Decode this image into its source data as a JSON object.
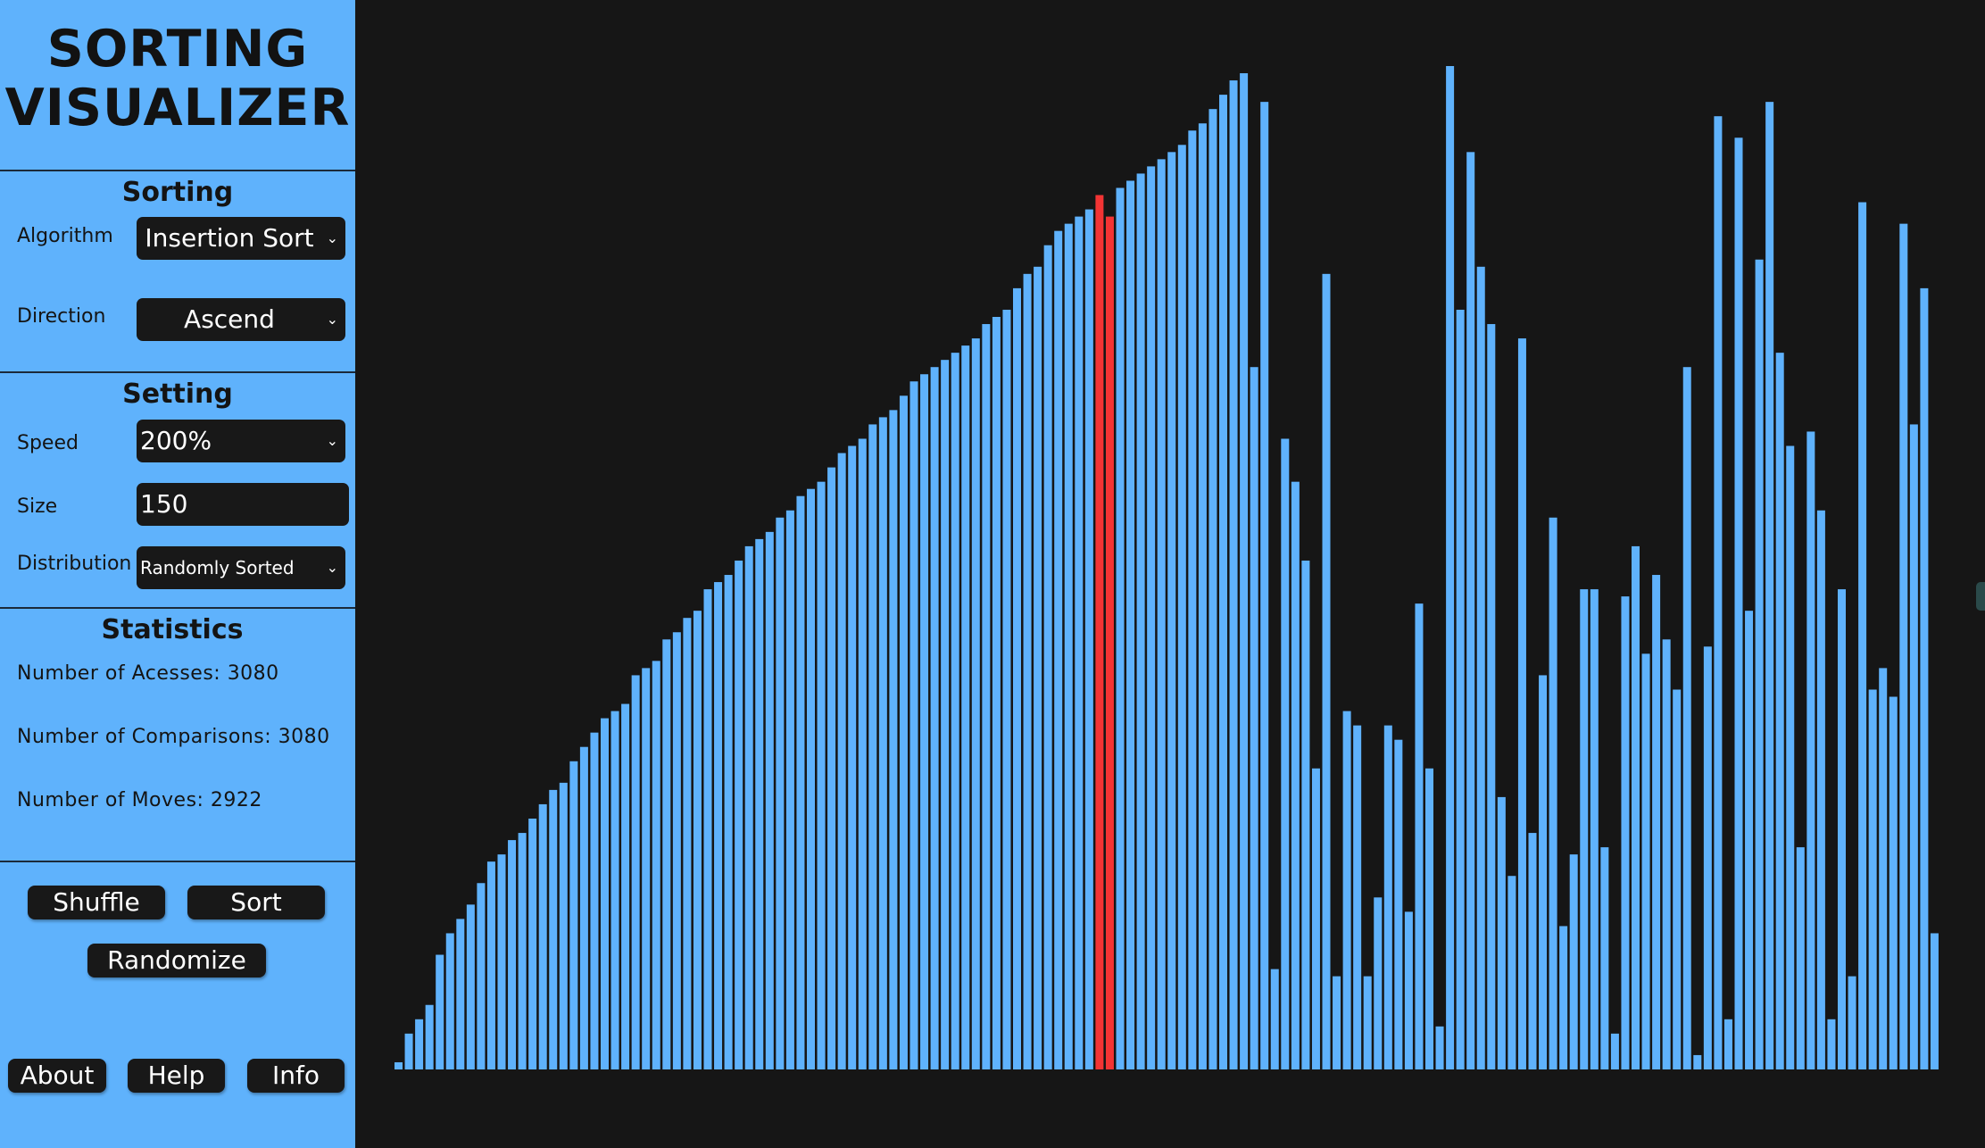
{
  "app": {
    "title_line1": "SORTING",
    "title_line2": "VISUALIZER"
  },
  "sorting": {
    "heading": "Sorting",
    "algorithm_label": "Algorithm",
    "algorithm_value": "Insertion Sort",
    "direction_label": "Direction",
    "direction_value": "Ascend"
  },
  "setting": {
    "heading": "Setting",
    "speed_label": "Speed",
    "speed_value": "200%",
    "size_label": "Size",
    "size_value": "150",
    "distribution_label": "Distribution",
    "distribution_value": "Randomly Sorted"
  },
  "statistics": {
    "heading": "Statistics",
    "accesses_text": "Number of Acesses: 3080",
    "comparisons_text": "Number of Comparisons: 3080",
    "moves_text": "Number of Moves: 2922"
  },
  "buttons": {
    "shuffle": "Shuffle",
    "sort": "Sort",
    "randomize": "Randomize",
    "about": "About",
    "help": "Help",
    "info": "Info"
  },
  "icons": {
    "dropdown": "chevron-down-icon"
  },
  "colors": {
    "bar": "#5fb2fc",
    "highlight": "#f33434",
    "background": "#161616",
    "sidebar": "#5fb2fc"
  },
  "chart_data": {
    "type": "bar",
    "highlighted_indices": [
      68,
      69
    ],
    "values": [
      1,
      5,
      7,
      9,
      16,
      19,
      21,
      23,
      26,
      29,
      30,
      32,
      33,
      35,
      37,
      39,
      40,
      43,
      45,
      47,
      49,
      50,
      51,
      55,
      56,
      57,
      60,
      61,
      63,
      64,
      67,
      68,
      69,
      71,
      73,
      74,
      75,
      77,
      78,
      80,
      81,
      82,
      84,
      86,
      87,
      88,
      90,
      91,
      92,
      94,
      96,
      97,
      98,
      99,
      100,
      101,
      102,
      104,
      105,
      106,
      109,
      111,
      112,
      115,
      117,
      118,
      119,
      120,
      122,
      119,
      123,
      124,
      125,
      126,
      127,
      128,
      129,
      131,
      132,
      134,
      136,
      138,
      139,
      98,
      135,
      14,
      88,
      82,
      71,
      42,
      111,
      13,
      50,
      48,
      13,
      24,
      48,
      46,
      22,
      65,
      42,
      6,
      140,
      106,
      128,
      112,
      104,
      38,
      27,
      102,
      33,
      55,
      77,
      20,
      30,
      67,
      67,
      31,
      5,
      66,
      73,
      58,
      69,
      60,
      53,
      98,
      2,
      59,
      133,
      7,
      130,
      64,
      113,
      135,
      100,
      87,
      31,
      89,
      78,
      7,
      67,
      13,
      121,
      53,
      56,
      52,
      118,
      90,
      109,
      19
    ]
  }
}
